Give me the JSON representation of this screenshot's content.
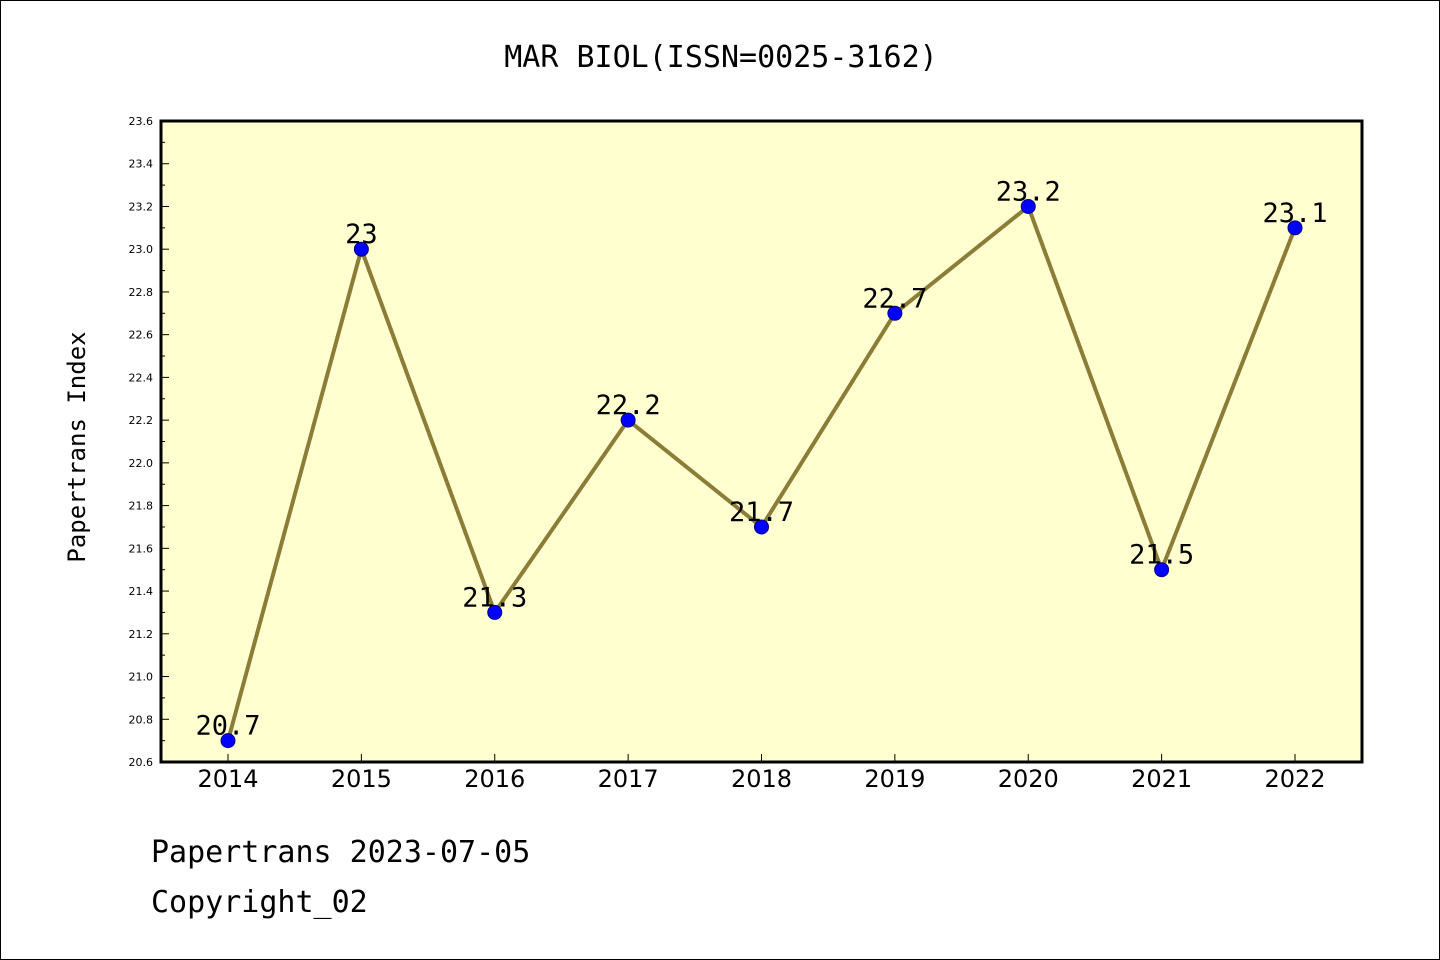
{
  "colors": {
    "plot_background": "#ffffd0",
    "line": "#8b7d37",
    "marker_fill": "#0000ff",
    "marker_edge": "#000080",
    "axes": "#000000"
  },
  "chart_data": {
    "type": "line",
    "title": "MAR BIOL(ISSN=0025-3162)",
    "xlabel": "",
    "ylabel": "Papertrans Index",
    "categories": [
      "2014",
      "2015",
      "2016",
      "2017",
      "2018",
      "2019",
      "2020",
      "2021",
      "2022"
    ],
    "values": [
      20.7,
      23,
      21.3,
      22.2,
      21.7,
      22.7,
      23.2,
      21.5,
      23.1
    ],
    "data_labels": [
      "20.7",
      "23",
      "21.3",
      "22.2",
      "21.7",
      "22.7",
      "23.2",
      "21.5",
      "23.1"
    ],
    "ylim": [
      20.6,
      23.6
    ],
    "yticks": [
      "20.6",
      "20.8",
      "21.0",
      "21.2",
      "21.4",
      "21.6",
      "21.8",
      "22.0",
      "22.2",
      "22.4",
      "22.6",
      "22.8",
      "23.0",
      "23.2",
      "23.4",
      "23.6"
    ],
    "grid": false,
    "legend": "none"
  },
  "footer": {
    "line1": "Papertrans 2023-07-05",
    "line2": "Copyright_02"
  }
}
